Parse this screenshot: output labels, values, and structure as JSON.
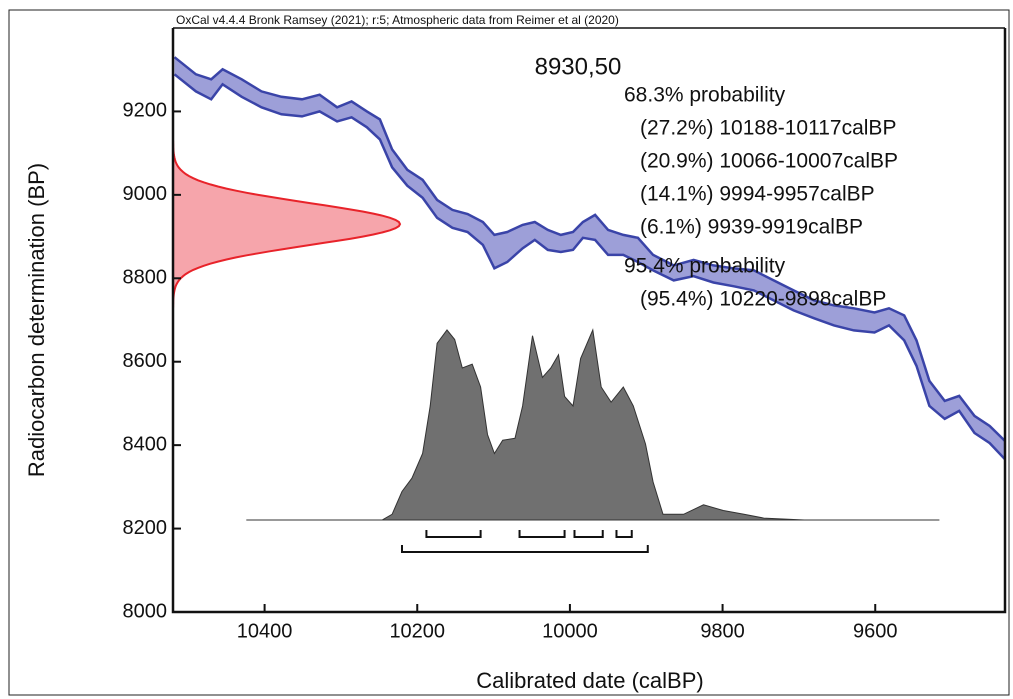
{
  "chart_data": {
    "type": "calibration",
    "header": "OxCal v4.4.4 Bronk Ramsey (2021); r:5; Atmospheric data from Reimer et al (2020)",
    "title": "8930,50",
    "x_label": "Calibrated date (calBP)",
    "y_label": "Radiocarbon determination (BP)",
    "xlim": [
      10520,
      9430
    ],
    "ylim": [
      8000,
      9400
    ],
    "xticks": [
      10400,
      10200,
      10000,
      9800,
      9600
    ],
    "yticks": [
      8000,
      8200,
      8400,
      8600,
      8800,
      9000,
      9200
    ],
    "curve": {
      "color": "#3a44a8",
      "fill": "#9d9fd8",
      "x": [
        10518,
        10490,
        10470,
        10455,
        10430,
        10404,
        10378,
        10351,
        10328,
        10305,
        10286,
        10266,
        10249,
        10233,
        10213,
        10193,
        10174,
        10154,
        10134,
        10114,
        10099,
        10082,
        10062,
        10046,
        10029,
        10012,
        9996,
        9983,
        9967,
        9950,
        9930,
        9911,
        9891,
        9864,
        9838,
        9812,
        9786,
        9759,
        9733,
        9707,
        9680,
        9654,
        9628,
        9601,
        9582,
        9562,
        9546,
        9529,
        9509,
        9490,
        9470,
        9450,
        9430
      ],
      "upper": [
        9330,
        9289,
        9277,
        9301,
        9277,
        9248,
        9235,
        9229,
        9240,
        9210,
        9224,
        9200,
        9181,
        9109,
        9060,
        9036,
        8988,
        8964,
        8954,
        8935,
        8904,
        8911,
        8928,
        8935,
        8916,
        8904,
        8911,
        8935,
        8952,
        8916,
        8904,
        8897,
        8856,
        8831,
        8844,
        8831,
        8824,
        8819,
        8795,
        8771,
        8747,
        8735,
        8728,
        8718,
        8728,
        8711,
        8651,
        8554,
        8506,
        8518,
        8470,
        8446,
        8410
      ],
      "lower": [
        9289,
        9248,
        9229,
        9265,
        9235,
        9210,
        9193,
        9188,
        9200,
        9176,
        9186,
        9162,
        9133,
        9066,
        9022,
        8993,
        8945,
        8921,
        8911,
        8880,
        8824,
        8839,
        8872,
        8892,
        8868,
        8863,
        8868,
        8897,
        8892,
        8856,
        8856,
        8839,
        8819,
        8795,
        8805,
        8790,
        8781,
        8771,
        8747,
        8723,
        8704,
        8687,
        8675,
        8670,
        8687,
        8651,
        8590,
        8494,
        8463,
        8482,
        8429,
        8405,
        8366
      ]
    },
    "c14": {
      "mean": 8930,
      "sd": 50,
      "color": "#e8232a",
      "fill": "#f6a5ab"
    },
    "calibrated": {
      "color": "#333333",
      "fill": "#707070",
      "x": [
        10424,
        10246,
        10233,
        10220,
        10207,
        10193,
        10183,
        10174,
        10161,
        10151,
        10141,
        10128,
        10117,
        10108,
        10099,
        10088,
        10072,
        10062,
        10049,
        10036,
        10025,
        10015,
        10007,
        9996,
        9986,
        9970,
        9959,
        9946,
        9930,
        9917,
        9901,
        9891,
        9878,
        9851,
        9825,
        9799,
        9772,
        9746,
        9693,
        9516
      ],
      "values": [
        0,
        0,
        0.03,
        0.15,
        0.22,
        0.35,
        0.6,
        0.93,
        1.0,
        0.95,
        0.8,
        0.82,
        0.7,
        0.45,
        0.35,
        0.42,
        0.43,
        0.6,
        0.97,
        0.75,
        0.8,
        0.87,
        0.65,
        0.6,
        0.85,
        1.0,
        0.7,
        0.62,
        0.7,
        0.6,
        0.4,
        0.2,
        0.03,
        0.03,
        0.08,
        0.05,
        0.03,
        0.01,
        0,
        0
      ]
    },
    "groups": [
      {
        "title": "68.3% probability",
        "ranges": [
          {
            "label": "(27.2%) 10188-10117calBP",
            "from": 10188,
            "to": 10117
          },
          {
            "label": "(20.9%) 10066-10007calBP",
            "from": 10066,
            "to": 10007
          },
          {
            "label": "(14.1%) 9994-9957calBP",
            "from": 9994,
            "to": 9957
          },
          {
            "label": "(6.1%) 9939-9919calBP",
            "from": 9939,
            "to": 9919
          }
        ]
      },
      {
        "title": "95.4% probability",
        "ranges": [
          {
            "label": "(95.4%) 10220-9898calBP",
            "from": 10220,
            "to": 9898
          }
        ]
      }
    ]
  }
}
